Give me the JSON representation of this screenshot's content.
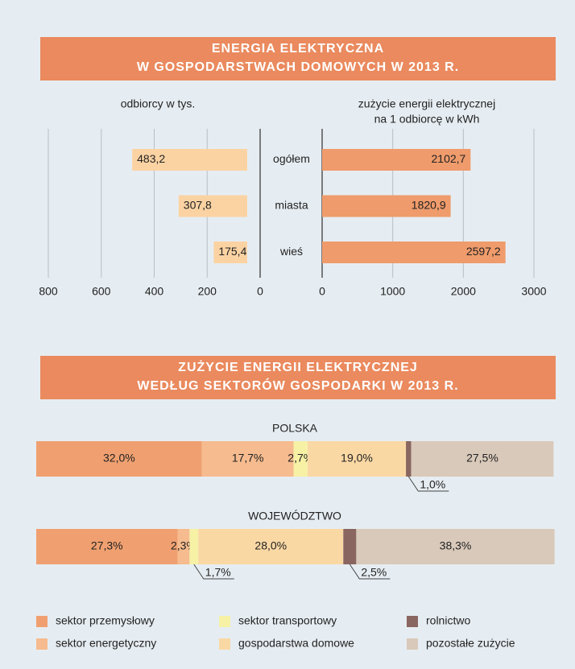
{
  "chart_data": [
    {
      "type": "butterfly",
      "title": [
        "ENERGIA ELEKTRYCZNA",
        "W GOSPODARSTWACH DOMOWYCH W 2013 R."
      ],
      "categories": [
        "ogółem",
        "miasta",
        "wieś"
      ],
      "series": [
        {
          "name": [
            "odbiorcy w tys."
          ],
          "color": "#fbd3a3",
          "values": [
            483.2,
            307.8,
            175.4
          ],
          "value_labels": [
            "483,2",
            "307,8",
            "175,4"
          ]
        },
        {
          "name": [
            "zużycie energii elektrycznej",
            "na 1 odbiorcę w kWh"
          ],
          "color": "#ef9b6b",
          "axis": "x2",
          "values": [
            2102.7,
            1820.9,
            2597.2
          ],
          "value_labels": [
            "2102,7",
            "1820,9",
            "2597,2"
          ]
        }
      ],
      "xlim": [
        0,
        800
      ],
      "xticks": [
        0,
        200,
        400,
        600,
        800
      ],
      "x2lim": [
        0,
        3000
      ],
      "x2ticks": [
        0,
        1000,
        2000,
        3000
      ],
      "grid": true
    },
    {
      "type": "stacked100",
      "title": [
        "ZUŻYCIE ENERGII ELEKTRYCZNEJ",
        "WEDŁUG SEKTORÓW GOSPODARKI W 2013 R."
      ],
      "categories": [
        "POLSKA",
        "WOJEWÓDZTWO"
      ],
      "xlim": [
        0,
        100
      ],
      "series": [
        {
          "name": "sektor przemysłowy",
          "color": "#f0a070",
          "values": [
            32.0,
            27.3
          ],
          "value_labels": [
            "32,0%",
            "27,3%"
          ],
          "label_below": [
            false,
            false
          ]
        },
        {
          "name": "sektor energetyczny",
          "color": "#f6bb8e",
          "values": [
            17.7,
            2.3
          ],
          "value_labels": [
            "17,7%",
            "2,3%"
          ],
          "label_below": [
            false,
            false
          ]
        },
        {
          "name": "sektor transportowy",
          "color": "#f7f1a6",
          "values": [
            2.7,
            1.7
          ],
          "value_labels": [
            "2,7%",
            "1,7%"
          ],
          "label_below": [
            false,
            true
          ]
        },
        {
          "name": "gospodarstwa domowe",
          "color": "#fad8a4",
          "values": [
            19.0,
            28.0
          ],
          "value_labels": [
            "19,0%",
            "28,0%"
          ],
          "label_below": [
            false,
            false
          ]
        },
        {
          "name": "rolnictwo",
          "color": "#8a6660",
          "values": [
            1.0,
            2.5
          ],
          "value_labels": [
            "1,0%",
            "2,5%"
          ],
          "label_below": [
            true,
            true
          ]
        },
        {
          "name": "pozostałe zużycie",
          "color": "#d9c9ba",
          "values": [
            27.5,
            38.3
          ],
          "value_labels": [
            "27,5%",
            "38,3%"
          ],
          "label_below": [
            false,
            false
          ]
        }
      ]
    }
  ]
}
